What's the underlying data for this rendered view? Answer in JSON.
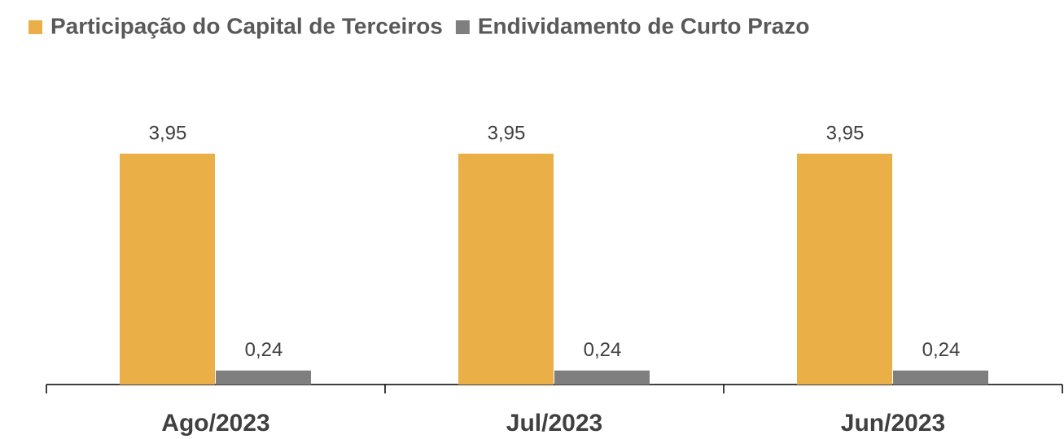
{
  "chart_data": {
    "type": "bar",
    "categories": [
      "Ago/2023",
      "Jul/2023",
      "Jun/2023"
    ],
    "series": [
      {
        "name": "Participação do Capital de Terceiros",
        "color": "#eaaf47",
        "values": [
          3.95,
          3.95,
          3.95
        ],
        "value_labels": [
          "3,95",
          "3,95",
          "3,95"
        ]
      },
      {
        "name": "Endividamento de Curto Prazo",
        "color": "#7f7f7f",
        "values": [
          0.24,
          0.24,
          0.24
        ],
        "value_labels": [
          "0,24",
          "0,24",
          "0,24"
        ]
      }
    ],
    "legend": "top"
  }
}
